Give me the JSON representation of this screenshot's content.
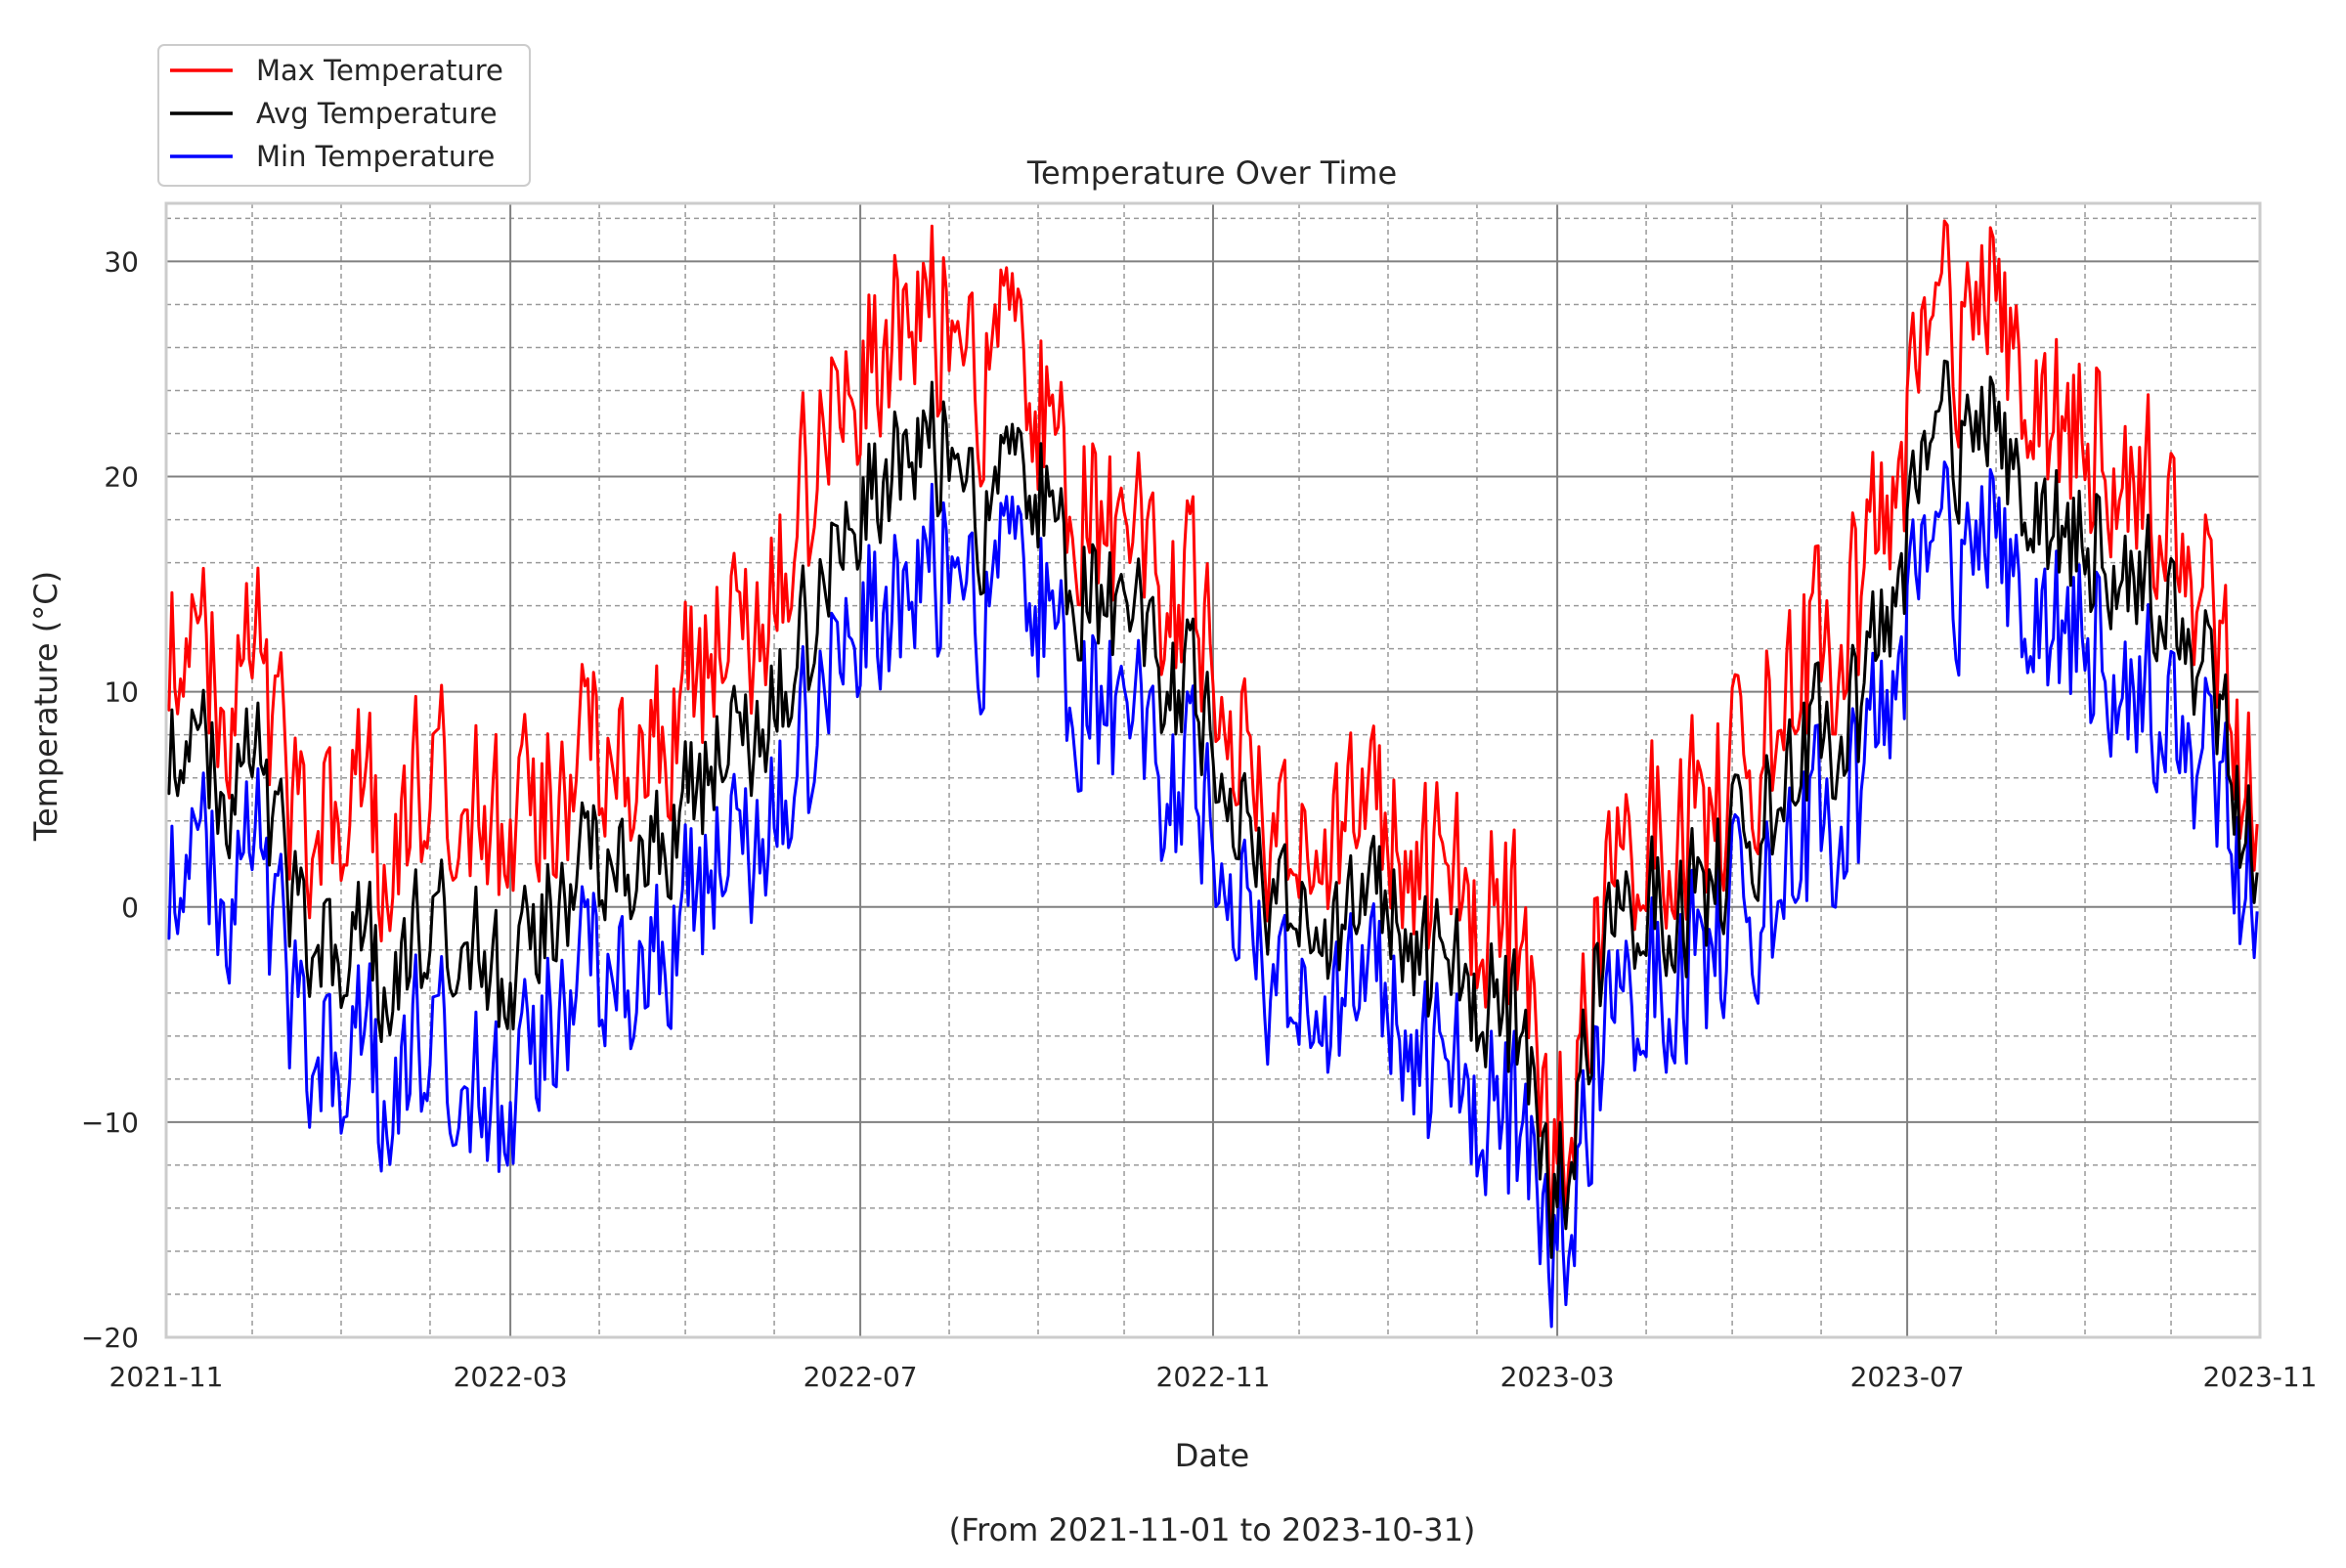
{
  "chart_data": {
    "type": "line",
    "title": "Temperature Over Time",
    "xlabel": "Date",
    "xlabel_note": "(From 2021-11-01 to 2023-10-31)",
    "ylabel": "Temperature (°C)",
    "xlim": [
      "2021-11-01",
      "2023-11-01"
    ],
    "ylim": [
      -20,
      32.7
    ],
    "grid": true,
    "legend_position": "top-left",
    "x_ticks": [
      {
        "date": "2021-11-01",
        "label": "2021-11"
      },
      {
        "date": "2022-03-01",
        "label": "2022-03"
      },
      {
        "date": "2022-07-01",
        "label": "2022-07"
      },
      {
        "date": "2022-11-01",
        "label": "2022-11"
      },
      {
        "date": "2023-03-01",
        "label": "2023-03"
      },
      {
        "date": "2023-07-01",
        "label": "2023-07"
      },
      {
        "date": "2023-11-01",
        "label": "2023-11"
      }
    ],
    "y_ticks": [
      {
        "value": -20,
        "label": "−20"
      },
      {
        "value": -10,
        "label": "−10"
      },
      {
        "value": 0,
        "label": "0"
      },
      {
        "value": 10,
        "label": "10"
      },
      {
        "value": 20,
        "label": "20"
      },
      {
        "value": 30,
        "label": "30"
      }
    ],
    "series": [
      {
        "name": "Max Temperature",
        "color": "#ff0000",
        "x": [
          "2021-11-01",
          "2021-11-15",
          "2021-12-01",
          "2021-12-15",
          "2022-01-01",
          "2022-01-15",
          "2022-02-01",
          "2022-02-15",
          "2022-03-01",
          "2022-03-15",
          "2022-04-01",
          "2022-04-15",
          "2022-05-01",
          "2022-05-15",
          "2022-06-01",
          "2022-06-15",
          "2022-07-01",
          "2022-07-15",
          "2022-08-01",
          "2022-08-15",
          "2022-09-01",
          "2022-09-15",
          "2022-10-01",
          "2022-10-15",
          "2022-11-01",
          "2022-11-15",
          "2022-12-01",
          "2022-12-15",
          "2023-01-01",
          "2023-01-15",
          "2023-02-01",
          "2023-02-15",
          "2023-03-01",
          "2023-03-15",
          "2023-04-01",
          "2023-04-15",
          "2023-05-01",
          "2023-05-15",
          "2023-06-01",
          "2023-06-15",
          "2023-07-01",
          "2023-07-15",
          "2023-08-01",
          "2023-08-15",
          "2023-09-01",
          "2023-09-15",
          "2023-10-01",
          "2023-10-15",
          "2023-10-31"
        ],
        "values": [
          13,
          10,
          12,
          4,
          5,
          3,
          6,
          4,
          2,
          5,
          7,
          8,
          9,
          12,
          14,
          20,
          25,
          26,
          28,
          25,
          24,
          19,
          16,
          15,
          12,
          5,
          3,
          1,
          6,
          1,
          0,
          -2,
          -12,
          0,
          3,
          4,
          5,
          9,
          12,
          14,
          22,
          27,
          28,
          23,
          22,
          22,
          18,
          13,
          3
        ]
      },
      {
        "name": "Avg Temperature",
        "color": "#000000",
        "x": [
          "2021-11-01",
          "2021-11-15",
          "2021-12-01",
          "2021-12-15",
          "2022-01-01",
          "2022-01-15",
          "2022-02-01",
          "2022-02-15",
          "2022-03-01",
          "2022-03-15",
          "2022-04-01",
          "2022-04-15",
          "2022-05-01",
          "2022-05-15",
          "2022-06-01",
          "2022-06-15",
          "2022-07-01",
          "2022-07-15",
          "2022-08-01",
          "2022-08-15",
          "2022-09-01",
          "2022-09-15",
          "2022-10-01",
          "2022-10-15",
          "2022-11-01",
          "2022-11-15",
          "2022-12-01",
          "2022-12-15",
          "2023-01-01",
          "2023-01-15",
          "2023-02-01",
          "2023-02-15",
          "2023-03-01",
          "2023-03-15",
          "2023-04-01",
          "2023-04-15",
          "2023-05-01",
          "2023-05-15",
          "2023-06-01",
          "2023-06-15",
          "2023-07-01",
          "2023-07-15",
          "2023-08-01",
          "2023-08-15",
          "2023-09-01",
          "2023-09-15",
          "2023-10-01",
          "2023-10-15",
          "2023-10-31"
        ],
        "values": [
          8,
          6,
          7,
          0,
          -2,
          -3,
          -1,
          -2,
          -5,
          0,
          2,
          3,
          4,
          7,
          9,
          13,
          19,
          20,
          22,
          18,
          20,
          15,
          13,
          11,
          8,
          2,
          0,
          -3,
          2,
          -3,
          -4,
          -6,
          -14,
          -2,
          0,
          0,
          2,
          5,
          8,
          9,
          17,
          22,
          22,
          18,
          17,
          17,
          14,
          10,
          1
        ]
      },
      {
        "name": "Min Temperature",
        "color": "#0000ff",
        "x": [
          "2021-11-01",
          "2021-11-15",
          "2021-12-01",
          "2021-12-15",
          "2022-01-01",
          "2022-01-15",
          "2022-02-01",
          "2022-02-15",
          "2022-03-01",
          "2022-03-15",
          "2022-04-01",
          "2022-04-15",
          "2022-05-01",
          "2022-05-15",
          "2022-06-01",
          "2022-06-15",
          "2022-07-01",
          "2022-07-15",
          "2022-08-01",
          "2022-08-15",
          "2022-09-01",
          "2022-09-15",
          "2022-10-01",
          "2022-10-15",
          "2022-11-01",
          "2022-11-15",
          "2022-12-01",
          "2022-12-15",
          "2023-01-01",
          "2023-01-15",
          "2023-02-01",
          "2023-02-15",
          "2023-03-01",
          "2023-03-15",
          "2023-04-01",
          "2023-04-15",
          "2023-05-01",
          "2023-05-15",
          "2023-06-01",
          "2023-06-15",
          "2023-07-01",
          "2023-07-15",
          "2023-08-01",
          "2023-08-15",
          "2023-09-01",
          "2023-09-15",
          "2023-10-01",
          "2023-10-15",
          "2023-10-31"
        ],
        "values": [
          2,
          1,
          3,
          -5,
          -7,
          -8,
          -6,
          -9,
          -11,
          -5,
          -3,
          -2,
          -1,
          2,
          4,
          8,
          14,
          13,
          17,
          14,
          15,
          10,
          8,
          6,
          4,
          -2,
          -4,
          -7,
          -2,
          -8,
          -9,
          -11,
          -16,
          -6,
          -4,
          -3,
          -1,
          1,
          4,
          5,
          13,
          16,
          17,
          13,
          13,
          12,
          9,
          6,
          -1
        ]
      }
    ]
  }
}
